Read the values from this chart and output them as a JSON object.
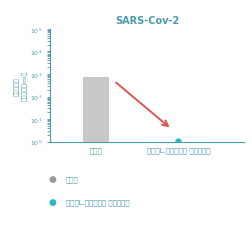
{
  "title": "SARS-Cov-2",
  "title_color": "#4a9aaa",
  "bar_categories": [
    "対照群",
    "乳酸菌L.ラクティス プラズマ群"
  ],
  "bar_value": 700,
  "dot_value": 1.0,
  "bar_color": "#c8c8c8",
  "dot_color": "#29b8c2",
  "ylabel_lines": [
    "ウイルス量",
    "（コピー／ml）"
  ],
  "ylim": [
    1,
    100000
  ],
  "ytick_labels": [
    "10⁰",
    "10¹",
    "10²",
    "10³",
    "10⁴",
    "10⁵"
  ],
  "arrow_color": "#e05555",
  "legend_dot1_color": "#999999",
  "legend_dot2_color": "#29b8c2",
  "legend_label1": "対照群",
  "legend_label2": "乳酸菌L.ラクティス プラズマ群",
  "axis_color": "#4a9aaa",
  "tick_color": "#4a9aaa",
  "text_color": "#4a9aaa",
  "background_color": "#ffffff",
  "bar_x": 0,
  "dot_x": 1,
  "xlim": [
    -0.55,
    1.8
  ]
}
